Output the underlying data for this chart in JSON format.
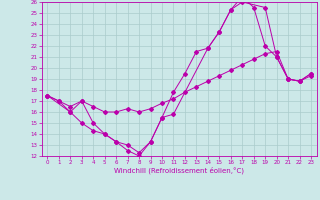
{
  "xlabel": "Windchill (Refroidissement éolien,°C)",
  "xlim": [
    -0.5,
    23.5
  ],
  "ylim": [
    12,
    26
  ],
  "xticks": [
    0,
    1,
    2,
    3,
    4,
    5,
    6,
    7,
    8,
    9,
    10,
    11,
    12,
    13,
    14,
    15,
    16,
    17,
    18,
    19,
    20,
    21,
    22,
    23
  ],
  "yticks": [
    12,
    13,
    14,
    15,
    16,
    17,
    18,
    19,
    20,
    21,
    22,
    23,
    24,
    25,
    26
  ],
  "bg_color": "#cce8e8",
  "grid_color": "#aacccc",
  "line_color": "#bb00aa",
  "line1_x": [
    0,
    1,
    2,
    3,
    4,
    5,
    6,
    7,
    8,
    9,
    10,
    11,
    12,
    13,
    14,
    15,
    16,
    17,
    18,
    19,
    20,
    21,
    22,
    23
  ],
  "line1_y": [
    17.5,
    17,
    16,
    17,
    15,
    14,
    13.3,
    12.5,
    12,
    13.3,
    15.5,
    17.8,
    19.5,
    21.5,
    21.8,
    23.3,
    25.3,
    26.5,
    25.5,
    22,
    21,
    19,
    18.8,
    19.5
  ],
  "line2_x": [
    0,
    1,
    2,
    3,
    4,
    5,
    6,
    7,
    8,
    9,
    10,
    11,
    12,
    13,
    14,
    15,
    16,
    17,
    18,
    19,
    20,
    21,
    22,
    23
  ],
  "line2_y": [
    17.5,
    17,
    16.5,
    17,
    16.5,
    16,
    16,
    16.3,
    16,
    16.3,
    16.8,
    17.2,
    17.8,
    18.3,
    18.8,
    19.3,
    19.8,
    20.3,
    20.8,
    21.3,
    21.5,
    19,
    18.8,
    19.3
  ],
  "line3_x": [
    0,
    2,
    3,
    4,
    5,
    6,
    7,
    8,
    9,
    10,
    11,
    14,
    15,
    16,
    17,
    19,
    20,
    21,
    22,
    23
  ],
  "line3_y": [
    17.5,
    16,
    15,
    14.3,
    14,
    13.3,
    13,
    12.3,
    13.3,
    15.5,
    15.8,
    21.8,
    23.3,
    25.3,
    26,
    25.5,
    21,
    19,
    18.8,
    19.5
  ]
}
